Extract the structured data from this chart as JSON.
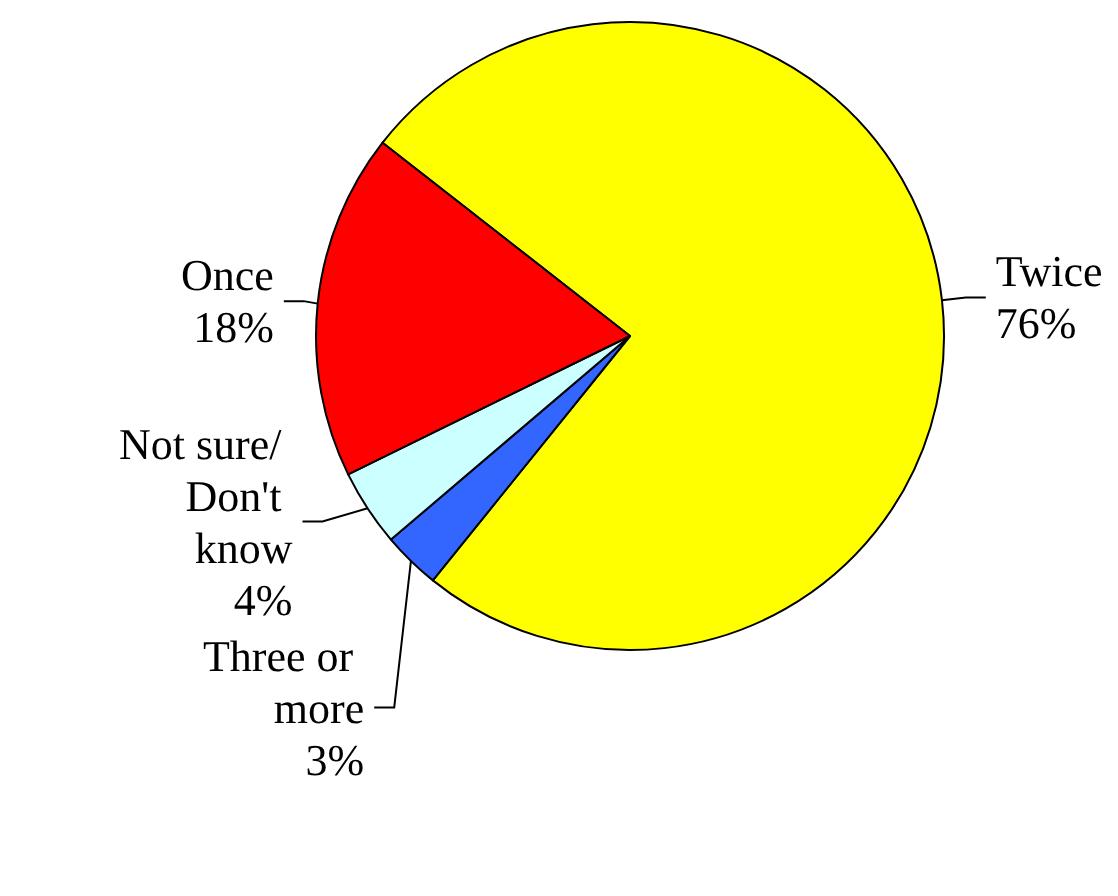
{
  "chart_data": {
    "type": "pie",
    "categories": [
      "Twice",
      "Three or more",
      "Not sure/ Don't know",
      "Once"
    ],
    "values": [
      76,
      3,
      4,
      18
    ],
    "colors": [
      "#ffff00",
      "#3366ff",
      "#ccffff",
      "#ff0000"
    ],
    "value_labels": [
      "76%",
      "3%",
      "4%",
      "18%"
    ],
    "legend": false
  }
}
